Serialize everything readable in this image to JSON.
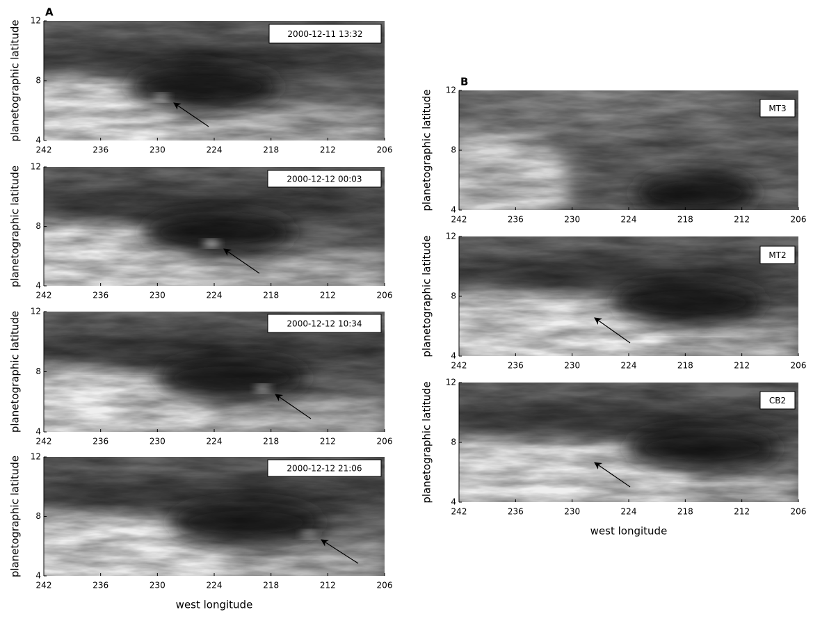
{
  "chart_data": [
    {
      "type": "image",
      "panel": "A",
      "label": "2000-12-11  13:32",
      "ylabel": "planetographic latitude",
      "xlim": [
        242,
        206
      ],
      "xticks": [
        242,
        236,
        230,
        224,
        218,
        212,
        206
      ],
      "ylim": [
        4,
        12
      ],
      "yticks": [
        4,
        8,
        12
      ]
    },
    {
      "type": "image",
      "label": "2000-12-12  00:03",
      "ylabel": "planetographic latitude",
      "xlim": [
        242,
        206
      ],
      "xticks": [
        242,
        236,
        230,
        224,
        218,
        212,
        206
      ],
      "ylim": [
        4,
        12
      ],
      "yticks": [
        4,
        8,
        12
      ]
    },
    {
      "type": "image",
      "label": "2000-12-12  10:34",
      "ylabel": "planetographic latitude",
      "xlim": [
        242,
        206
      ],
      "xticks": [
        242,
        236,
        230,
        224,
        218,
        212,
        206
      ],
      "ylim": [
        4,
        12
      ],
      "yticks": [
        4,
        8,
        12
      ]
    },
    {
      "type": "image",
      "label": "2000-12-12  21:06",
      "ylabel": "planetographic latitude",
      "xlabel": "west longitude",
      "xlim": [
        242,
        206
      ],
      "xticks": [
        242,
        236,
        230,
        224,
        218,
        212,
        206
      ],
      "ylim": [
        4,
        12
      ],
      "yticks": [
        4,
        8,
        12
      ]
    },
    {
      "type": "image",
      "panel": "B",
      "label": "MT3",
      "ylabel": "planetographic latitude",
      "xlim": [
        242,
        206
      ],
      "xticks": [
        242,
        236,
        230,
        224,
        218,
        212,
        206
      ],
      "ylim": [
        4,
        12
      ],
      "yticks": [
        4,
        8,
        12
      ]
    },
    {
      "type": "image",
      "label": "MT2",
      "ylabel": "planetographic latitude",
      "xlim": [
        242,
        206
      ],
      "xticks": [
        242,
        236,
        230,
        224,
        218,
        212,
        206
      ],
      "ylim": [
        4,
        12
      ],
      "yticks": [
        4,
        8,
        12
      ]
    },
    {
      "type": "image",
      "label": "CB2",
      "ylabel": "planetographic latitude",
      "xlabel": "west longitude",
      "xlim": [
        242,
        206
      ],
      "xticks": [
        242,
        236,
        230,
        224,
        218,
        212,
        206
      ],
      "ylim": [
        4,
        12
      ],
      "yticks": [
        4,
        8,
        12
      ]
    }
  ]
}
